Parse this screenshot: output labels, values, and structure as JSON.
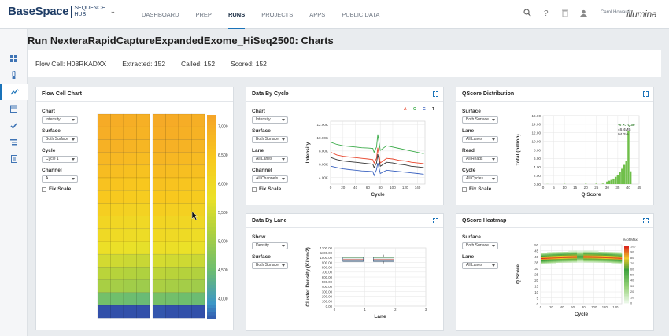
{
  "brand": {
    "name": "BaseSpace",
    "hub_line1": "SEQUENCE",
    "hub_line2": "HUB"
  },
  "nav": [
    {
      "label": "DASHBOARD",
      "active": false
    },
    {
      "label": "PREP",
      "active": false
    },
    {
      "label": "RUNS",
      "active": true
    },
    {
      "label": "PROJECTS",
      "active": false
    },
    {
      "label": "APPS",
      "active": false
    },
    {
      "label": "PUBLIC DATA",
      "active": false
    }
  ],
  "user": {
    "name": "Carol Howard"
  },
  "logo": "illumina",
  "page_title": "Run NexteraRapidCaptureExpandedExome_HiSeq2500: Charts",
  "summary": {
    "flow_cell": "Flow Cell: H08RKADXX",
    "extracted": "Extracted: 152",
    "called": "Called: 152",
    "scored": "Scored: 152"
  },
  "panels": {
    "flow_cell": {
      "title": "Flow Cell Chart",
      "chart_label": "Chart",
      "chart_value": "Intensity",
      "surface_label": "Surface",
      "surface_value": "Both Surface",
      "cycle_label": "Cycle",
      "cycle_value": "Cycle 1",
      "channel_label": "Channel",
      "channel_value": "A",
      "fix_scale": "Fix Scale"
    },
    "data_by_cycle": {
      "title": "Data By Cycle",
      "chart_label": "Chart",
      "chart_value": "Intensity",
      "surface_label": "Surface",
      "surface_value": "Both Surface",
      "lane_label": "Lane",
      "lane_value": "All Lanes",
      "channel_label": "Channel",
      "channel_value": "All Channels",
      "fix_scale": "Fix Scale"
    },
    "qscore_dist": {
      "title": "QScore Distribution",
      "surface_label": "Surface",
      "surface_value": "Both Surface",
      "lane_label": "Lane",
      "lane_value": "All Lanes",
      "read_label": "Read",
      "read_value": "All Reads",
      "cycle_label": "Cycle",
      "cycle_value": "All Cycles",
      "fix_scale": "Fix Scale"
    },
    "data_by_lane": {
      "title": "Data By Lane",
      "show_label": "Show",
      "show_value": "Density",
      "surface_label": "Surface",
      "surface_value": "Both Surface"
    },
    "qscore_heatmap": {
      "title": "QScore Heatmap",
      "surface_label": "Surface",
      "surface_value": "Both Surface",
      "lane_label": "Lane",
      "lane_value": "All Lanes"
    }
  },
  "chart_data": [
    {
      "type": "heatmap",
      "colorbar_ticks": [
        7000,
        6500,
        6000,
        5500,
        5000,
        4500,
        4000
      ],
      "colorbar_tick_labels": [
        "7,000",
        "6,500",
        "6,000",
        "5,500",
        "5,000",
        "4,500",
        "4,000"
      ],
      "lanes": 2,
      "swaths_per_lane": 4,
      "tiles": 16,
      "tile_values": [
        6900,
        6850,
        6800,
        6700,
        6600,
        6500,
        6400,
        6250,
        6100,
        6000,
        5850,
        5600,
        5400,
        5250,
        4800,
        4000
      ]
    },
    {
      "type": "line",
      "xlabel": "Cycle",
      "ylabel": "Intensity",
      "xlim": [
        0,
        152
      ],
      "ylim": [
        3000,
        12500
      ],
      "x_ticks": [
        0,
        20,
        40,
        60,
        80,
        100,
        120,
        140
      ],
      "y_ticks": [
        4000,
        6000,
        8000,
        10000,
        12000
      ],
      "y_tick_labels": [
        "4.00K",
        "6.00K",
        "8.00K",
        "10.00K",
        "12.00K"
      ],
      "legend": [
        "A",
        "C",
        "G",
        "T"
      ],
      "legend_placement": "top-right",
      "series": [
        {
          "name": "A",
          "color": "#e8452c",
          "x": [
            1,
            10,
            20,
            30,
            40,
            50,
            60,
            68,
            70,
            74,
            76,
            80,
            90,
            100,
            110,
            120,
            130,
            140,
            150
          ],
          "y": [
            7800,
            7400,
            7200,
            7100,
            7000,
            6900,
            6800,
            6700,
            6200,
            6900,
            8500,
            6200,
            6900,
            6800,
            6600,
            6500,
            6300,
            6200,
            6100
          ]
        },
        {
          "name": "C",
          "color": "#3cac4a",
          "x": [
            1,
            10,
            20,
            30,
            40,
            50,
            60,
            68,
            70,
            74,
            76,
            80,
            90,
            100,
            110,
            120,
            130,
            140,
            150
          ],
          "y": [
            9300,
            9000,
            8800,
            8700,
            8600,
            8500,
            8450,
            8400,
            7800,
            8600,
            10500,
            8100,
            8800,
            8600,
            8400,
            8200,
            8000,
            7800,
            7600
          ]
        },
        {
          "name": "G",
          "color": "#3a62c0",
          "x": [
            1,
            10,
            20,
            30,
            40,
            50,
            60,
            68,
            70,
            74,
            76,
            80,
            90,
            100,
            110,
            120,
            130,
            140,
            150
          ],
          "y": [
            5700,
            5500,
            5300,
            5200,
            5100,
            5000,
            4950,
            4900,
            4300,
            5200,
            6200,
            4600,
            5100,
            5000,
            4900,
            4800,
            4700,
            4600,
            4500
          ]
        },
        {
          "name": "T",
          "color": "#333333",
          "x": [
            1,
            10,
            20,
            30,
            40,
            50,
            60,
            68,
            70,
            74,
            76,
            80,
            90,
            100,
            110,
            120,
            130,
            140,
            150
          ],
          "y": [
            7000,
            6700,
            6500,
            6400,
            6300,
            6200,
            6100,
            6000,
            5500,
            6200,
            7500,
            5700,
            6300,
            6200,
            6000,
            5900,
            5700,
            5600,
            5500
          ]
        }
      ]
    },
    {
      "type": "bar",
      "xlabel": "Q Score",
      "ylabel": "Total (billion)",
      "xlim": [
        0,
        45
      ],
      "ylim": [
        0,
        16
      ],
      "x_ticks": [
        0,
        5,
        10,
        15,
        20,
        25,
        30,
        35,
        40,
        45
      ],
      "y_ticks": [
        0,
        2,
        4,
        6,
        8,
        10,
        12,
        14,
        16
      ],
      "y_tick_labels": [
        "0.00",
        "2.00",
        "4.00",
        "6.00",
        "8.00",
        "10.00",
        "12.00",
        "14.00",
        "16.00"
      ],
      "annotations": [
        "% >= Q30",
        "46.4MB",
        "94.2%"
      ],
      "bins": [
        2,
        10,
        20,
        25,
        28,
        30,
        31,
        32,
        33,
        34,
        35,
        36,
        37,
        38,
        39,
        40,
        41
      ],
      "values": [
        0.05,
        0.1,
        0.12,
        0.2,
        0.3,
        0.6,
        0.8,
        1.0,
        1.3,
        1.7,
        2.2,
        2.8,
        3.6,
        4.5,
        5.5,
        12.5,
        3.0
      ]
    },
    {
      "type": "box",
      "xlabel": "Lane",
      "ylabel": "Cluster Density (K/mm2)",
      "xlim": [
        0,
        3
      ],
      "ylim": [
        0,
        1200
      ],
      "x_ticks": [
        0,
        1,
        2,
        3
      ],
      "y_ticks": [
        0,
        100,
        200,
        300,
        400,
        500,
        600,
        700,
        800,
        900,
        1000,
        1100,
        1200
      ],
      "y_tick_labels": [
        "0.00",
        "100.00",
        "200.00",
        "300.00",
        "400.00",
        "500.00",
        "600.00",
        "700.00",
        "800.00",
        "900.00",
        "1000.00",
        "1100.00",
        "1200.00"
      ],
      "boxes": [
        {
          "lane": 1,
          "min": 880,
          "q1": 920,
          "median": 960,
          "q3": 1010,
          "max": 1060
        },
        {
          "lane": 2,
          "min": 880,
          "q1": 920,
          "median": 960,
          "q3": 1010,
          "max": 1060
        }
      ]
    },
    {
      "type": "heatmap",
      "xlabel": "Cycle",
      "ylabel": "Q Score",
      "xlim": [
        0,
        152
      ],
      "ylim": [
        0,
        50
      ],
      "x_ticks": [
        0,
        20,
        40,
        60,
        80,
        100,
        120,
        140
      ],
      "y_ticks": [
        0,
        5,
        10,
        15,
        20,
        25,
        30,
        35,
        40,
        45,
        50
      ],
      "colorbar_label": "% of Max",
      "colorbar_ticks": [
        0,
        10,
        20,
        30,
        40,
        50,
        60,
        70,
        80,
        90,
        100
      ],
      "band": {
        "q_center": [
          39,
          40,
          40,
          39,
          38,
          37
        ],
        "cycles": [
          0,
          30,
          60,
          90,
          120,
          150
        ]
      }
    }
  ]
}
